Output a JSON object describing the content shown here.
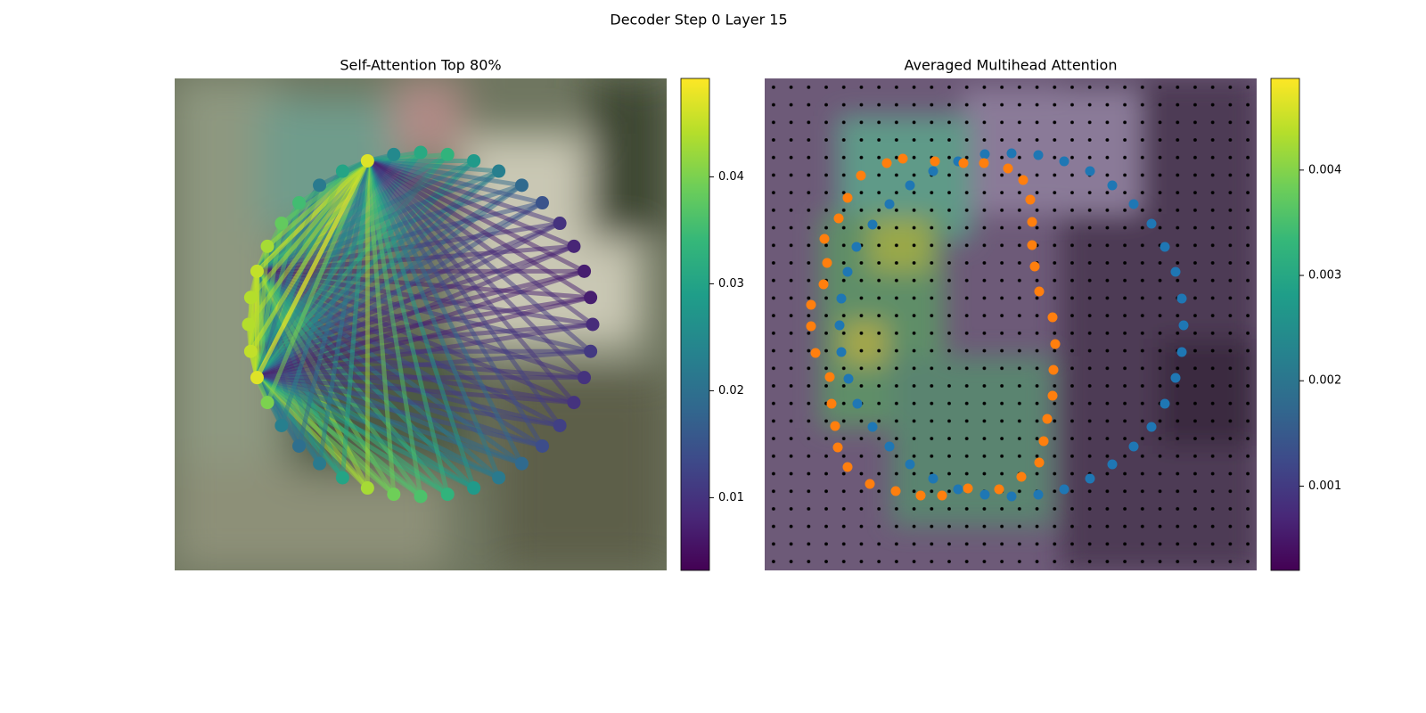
{
  "title": "Decoder Step 0 Layer 15",
  "chart_data": [
    {
      "type": "graph",
      "title": "Self-Attention Top 80%",
      "values": [
        0.031,
        0.033,
        0.028,
        0.023,
        0.019,
        0.015,
        0.01,
        0.008,
        0.007,
        0.007,
        0.009,
        0.011,
        0.01,
        0.01,
        0.012,
        0.014,
        0.019,
        0.022,
        0.028,
        0.033,
        0.036,
        0.039,
        0.043,
        0.03,
        0.022,
        0.02,
        0.023,
        0.04,
        0.047,
        0.045,
        0.044,
        0.044,
        0.045,
        0.043,
        0.038,
        0.035,
        0.022,
        0.03,
        0.047,
        0.025
      ],
      "clim": [
        0.0032,
        0.0492
      ],
      "cticks": [
        0.01,
        0.02,
        0.03,
        0.04
      ]
    },
    {
      "type": "scatter",
      "title": "Averaged Multihead Attention",
      "xlim": [
        0,
        552
      ],
      "ylim": [
        552,
        0
      ],
      "series": [
        {
          "color": "#1f77b4",
          "x": [
            247,
            277,
            307,
            336,
            365,
            390,
            414,
            434,
            449,
            461,
            468,
            470,
            468,
            461,
            449,
            434,
            414,
            390,
            365,
            336,
            307,
            277,
            247,
            217,
            189,
            163,
            140,
            121,
            104,
            94,
            86,
            84,
            86,
            93,
            103,
            121,
            140,
            163,
            189,
            217
          ],
          "values": [
            85,
            84,
            86,
            93,
            104,
            120,
            141,
            163,
            189,
            217,
            247,
            277,
            307,
            336,
            365,
            391,
            413,
            433,
            449,
            461,
            467,
            469,
            467,
            461,
            449,
            433,
            413,
            391,
            365,
            337,
            307,
            277,
            247,
            217,
            189,
            164,
            141,
            120,
            104,
            93
          ]
        },
        {
          "color": "#ff7f0e",
          "x": [
            155,
            191,
            223,
            246,
            273,
            290,
            298,
            300,
            300,
            303,
            308,
            323,
            326,
            324,
            323,
            317,
            313,
            308,
            288,
            263,
            228,
            199,
            175,
            147,
            118,
            93,
            82,
            79,
            75,
            73,
            57,
            52,
            52,
            66,
            70,
            67,
            83,
            93,
            108,
            137
          ],
          "values": [
            90,
            93,
            95,
            95,
            101,
            114,
            136,
            161,
            187,
            211,
            239,
            268,
            298,
            327,
            356,
            382,
            407,
            431,
            447,
            461,
            460,
            468,
            468,
            463,
            455,
            436,
            414,
            390,
            365,
            335,
            308,
            278,
            254,
            231,
            207,
            180,
            157,
            134,
            109,
            95
          ]
        }
      ],
      "clim": [
        0.0002,
        0.00487
      ],
      "cticks": [
        0.001,
        0.002,
        0.003,
        0.004
      ]
    }
  ]
}
